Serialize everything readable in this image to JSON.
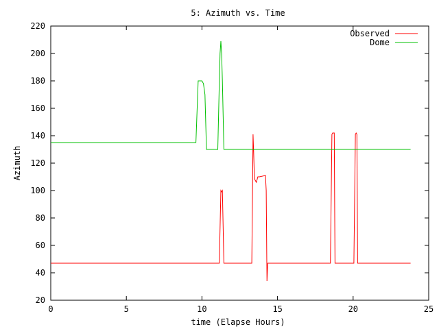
{
  "chart_data": {
    "type": "line",
    "title": "5: Azimuth vs. Time",
    "xlabel": "time (Elapse Hours)",
    "ylabel": "Azimuth",
    "xlim": [
      0,
      25
    ],
    "ylim": [
      20,
      220
    ],
    "xticks": [
      0,
      5,
      10,
      15,
      20,
      25
    ],
    "yticks": [
      20,
      40,
      60,
      80,
      100,
      120,
      140,
      160,
      180,
      200,
      220
    ],
    "grid": false,
    "legend": "top-right",
    "series": [
      {
        "name": "Observed",
        "color": "#ff0000",
        "x": [
          0,
          11.15,
          11.25,
          11.3,
          11.35,
          11.45,
          11.55,
          13.3,
          13.38,
          13.42,
          13.46,
          13.5,
          13.55,
          13.6,
          13.7,
          13.8,
          14.2,
          14.25,
          14.3,
          14.35,
          14.4,
          14.45,
          18.5,
          18.6,
          18.65,
          18.75,
          18.8,
          18.9,
          20.05,
          20.15,
          20.2,
          20.25,
          20.3,
          20.4,
          23.8
        ],
        "y": [
          47,
          47,
          100,
          99,
          100,
          47,
          47,
          47,
          141,
          128,
          112,
          108,
          107,
          106,
          110,
          110,
          111,
          100,
          34,
          47,
          47,
          47,
          47,
          141,
          142,
          142,
          47,
          47,
          47,
          141,
          142,
          141,
          47,
          47,
          47
        ]
      },
      {
        "name": "Dome",
        "color": "#00c000",
        "x": [
          0,
          9.6,
          9.75,
          10.0,
          10.1,
          10.2,
          10.3,
          11.05,
          11.15,
          11.2,
          11.25,
          11.3,
          11.35,
          11.45,
          11.55,
          23.8
        ],
        "y": [
          135,
          135,
          180,
          180,
          178,
          170,
          130,
          130,
          178,
          200,
          209,
          200,
          180,
          130,
          130,
          130
        ]
      }
    ]
  }
}
